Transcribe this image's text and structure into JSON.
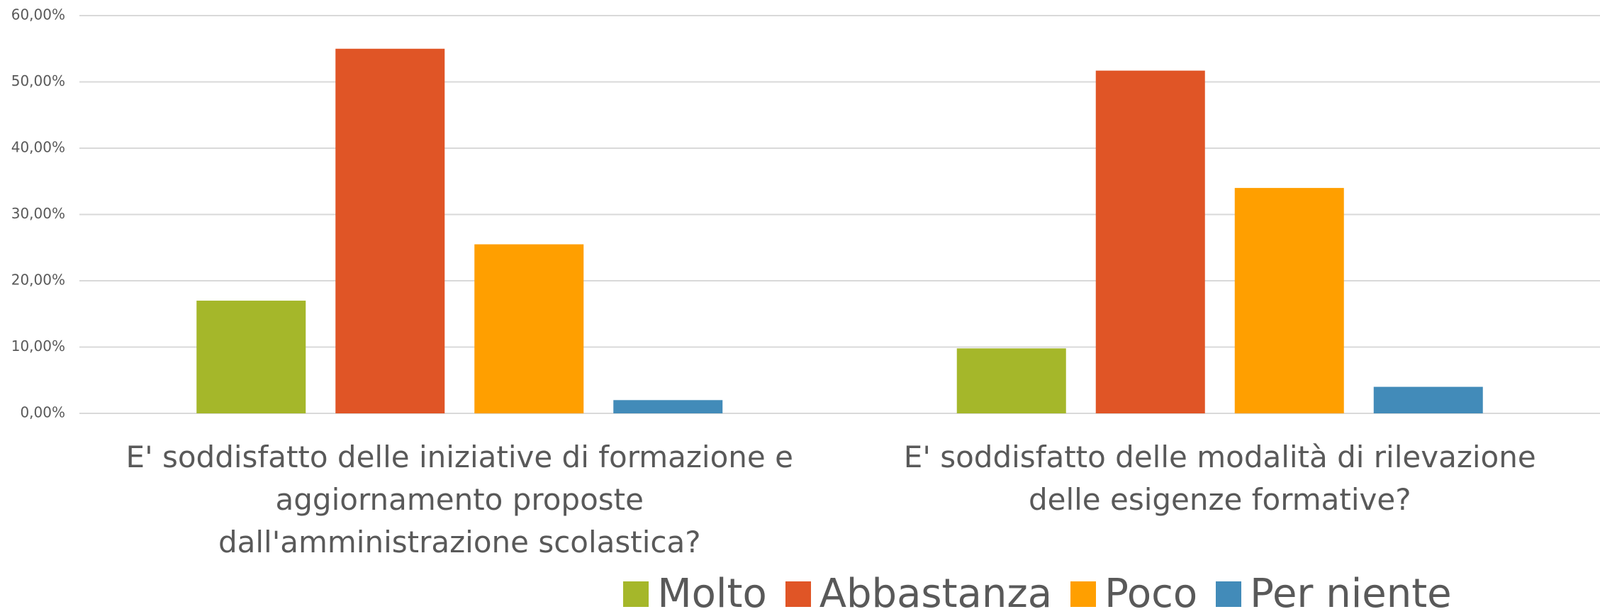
{
  "chart_data": {
    "type": "bar",
    "categories": [
      "E' soddisfatto delle iniziative di formazione e aggiornamento proposte dall'amministrazione scolastica?",
      "E' soddisfatto delle modalità di rilevazione delle esigenze formative?"
    ],
    "series": [
      {
        "name": "Molto",
        "color": "#a5b72a",
        "values": [
          17,
          9.8
        ]
      },
      {
        "name": "Abbastanza",
        "color": "#e05526",
        "values": [
          55,
          51.7
        ]
      },
      {
        "name": "Poco",
        "color": "#ff9f00",
        "values": [
          25.5,
          34
        ]
      },
      {
        "name": "Per niente",
        "color": "#428bb9",
        "values": [
          2,
          4
        ]
      }
    ],
    "ylim": [
      0,
      60
    ],
    "yticks": [
      {
        "value": 0,
        "label": "0,00%"
      },
      {
        "value": 10,
        "label": "10,00%"
      },
      {
        "value": 20,
        "label": "20,00%"
      },
      {
        "value": 30,
        "label": "30,00%"
      },
      {
        "value": 40,
        "label": "40,00%"
      },
      {
        "value": 50,
        "label": "50,00%"
      },
      {
        "value": 60,
        "label": "60,00%"
      }
    ],
    "grid": true,
    "legend": "bottom"
  }
}
